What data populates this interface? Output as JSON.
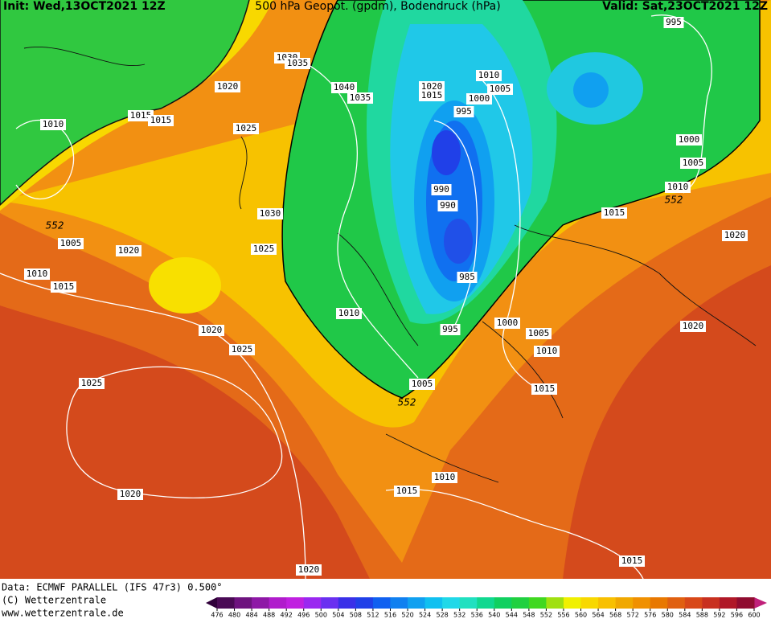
{
  "header": {
    "init": "Init: Wed,13OCT2021 12Z",
    "title": "500 hPa Geopot. (gpdm), Bodendruck (hPa)",
    "valid": "Valid: Sat,23OCT2021 12Z"
  },
  "isobar_labels": [
    "995",
    "1030",
    "1035",
    "1020",
    "1040",
    "1035",
    "1020",
    "1015",
    "1010",
    "1005",
    "1000",
    "995",
    "1010",
    "1015",
    "1015",
    "1025",
    "1000",
    "1005",
    "1010",
    "990",
    "990",
    "1030",
    "1015",
    "1005",
    "1020",
    "1025",
    "1020",
    "1010",
    "1015",
    "985",
    "1010",
    "1000",
    "995",
    "1005",
    "1020",
    "1020",
    "1025",
    "1010",
    "1025",
    "1005",
    "1015",
    "1010",
    "1015",
    "1020",
    "1015",
    "1020"
  ],
  "thickness_labels": [
    "552",
    "552",
    "552"
  ],
  "footer": {
    "data": "Data: ECMWF PARALLEL (IFS 47r3) 0.500°",
    "copyright": "(C) Wetterzentrale",
    "url": "www.wetterzentrale.de"
  },
  "colorbar": {
    "ticks": [
      476,
      480,
      484,
      488,
      492,
      496,
      500,
      504,
      508,
      512,
      516,
      520,
      524,
      528,
      532,
      536,
      540,
      544,
      548,
      552,
      556,
      560,
      564,
      568,
      572,
      576,
      580,
      584,
      588,
      592,
      596,
      600
    ],
    "colors": [
      "#4a0a55",
      "#6e137f",
      "#8e18a6",
      "#b01ccc",
      "#c020e0",
      "#9a28f0",
      "#6a30f0",
      "#3a30e8",
      "#2040e8",
      "#1060f0",
      "#1080f0",
      "#10a0f0",
      "#10c0f0",
      "#20d8e8",
      "#20e0c0",
      "#10d890",
      "#10d060",
      "#20d040",
      "#40d820",
      "#a0e010",
      "#f0f000",
      "#f8d800",
      "#f8c000",
      "#f0a800",
      "#f09000",
      "#e87800",
      "#e06010",
      "#d84818",
      "#c83020",
      "#b01828",
      "#900c30"
    ]
  }
}
